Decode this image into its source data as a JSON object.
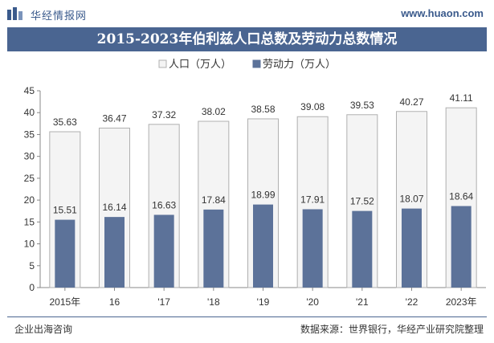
{
  "header": {
    "brand": "华经情报网",
    "site": "www.huaon.com"
  },
  "footer": {
    "left": "企业出海咨询",
    "right": "数据来源：世界银行，华经产业研究院整理"
  },
  "colors": {
    "title_bg": "#4a6591",
    "population_fill": "#f4f4f4",
    "population_stroke": "#b0b0b0",
    "labor_fill": "#5c7299"
  },
  "chart_data": {
    "type": "bar",
    "title": "2015-2023年伯利兹人口总数及劳动力总数情况",
    "categories": [
      "2015年",
      "16",
      "'17",
      "'18",
      "'19",
      "'20",
      "'21",
      "'22",
      "2023年"
    ],
    "series": [
      {
        "name": "人口（万人）",
        "values": [
          35.63,
          36.47,
          37.32,
          38.02,
          38.58,
          39.08,
          39.53,
          40.27,
          41.11
        ]
      },
      {
        "name": "劳动力（万人）",
        "values": [
          15.51,
          16.14,
          16.63,
          17.84,
          18.99,
          17.91,
          17.52,
          18.07,
          18.64
        ]
      }
    ],
    "ylim": [
      0,
      45
    ],
    "yticks": [
      0,
      5,
      10,
      15,
      20,
      25,
      30,
      35,
      40,
      45
    ],
    "xlabel": "",
    "ylabel": "",
    "legend_position": "top-center",
    "grid": false
  }
}
